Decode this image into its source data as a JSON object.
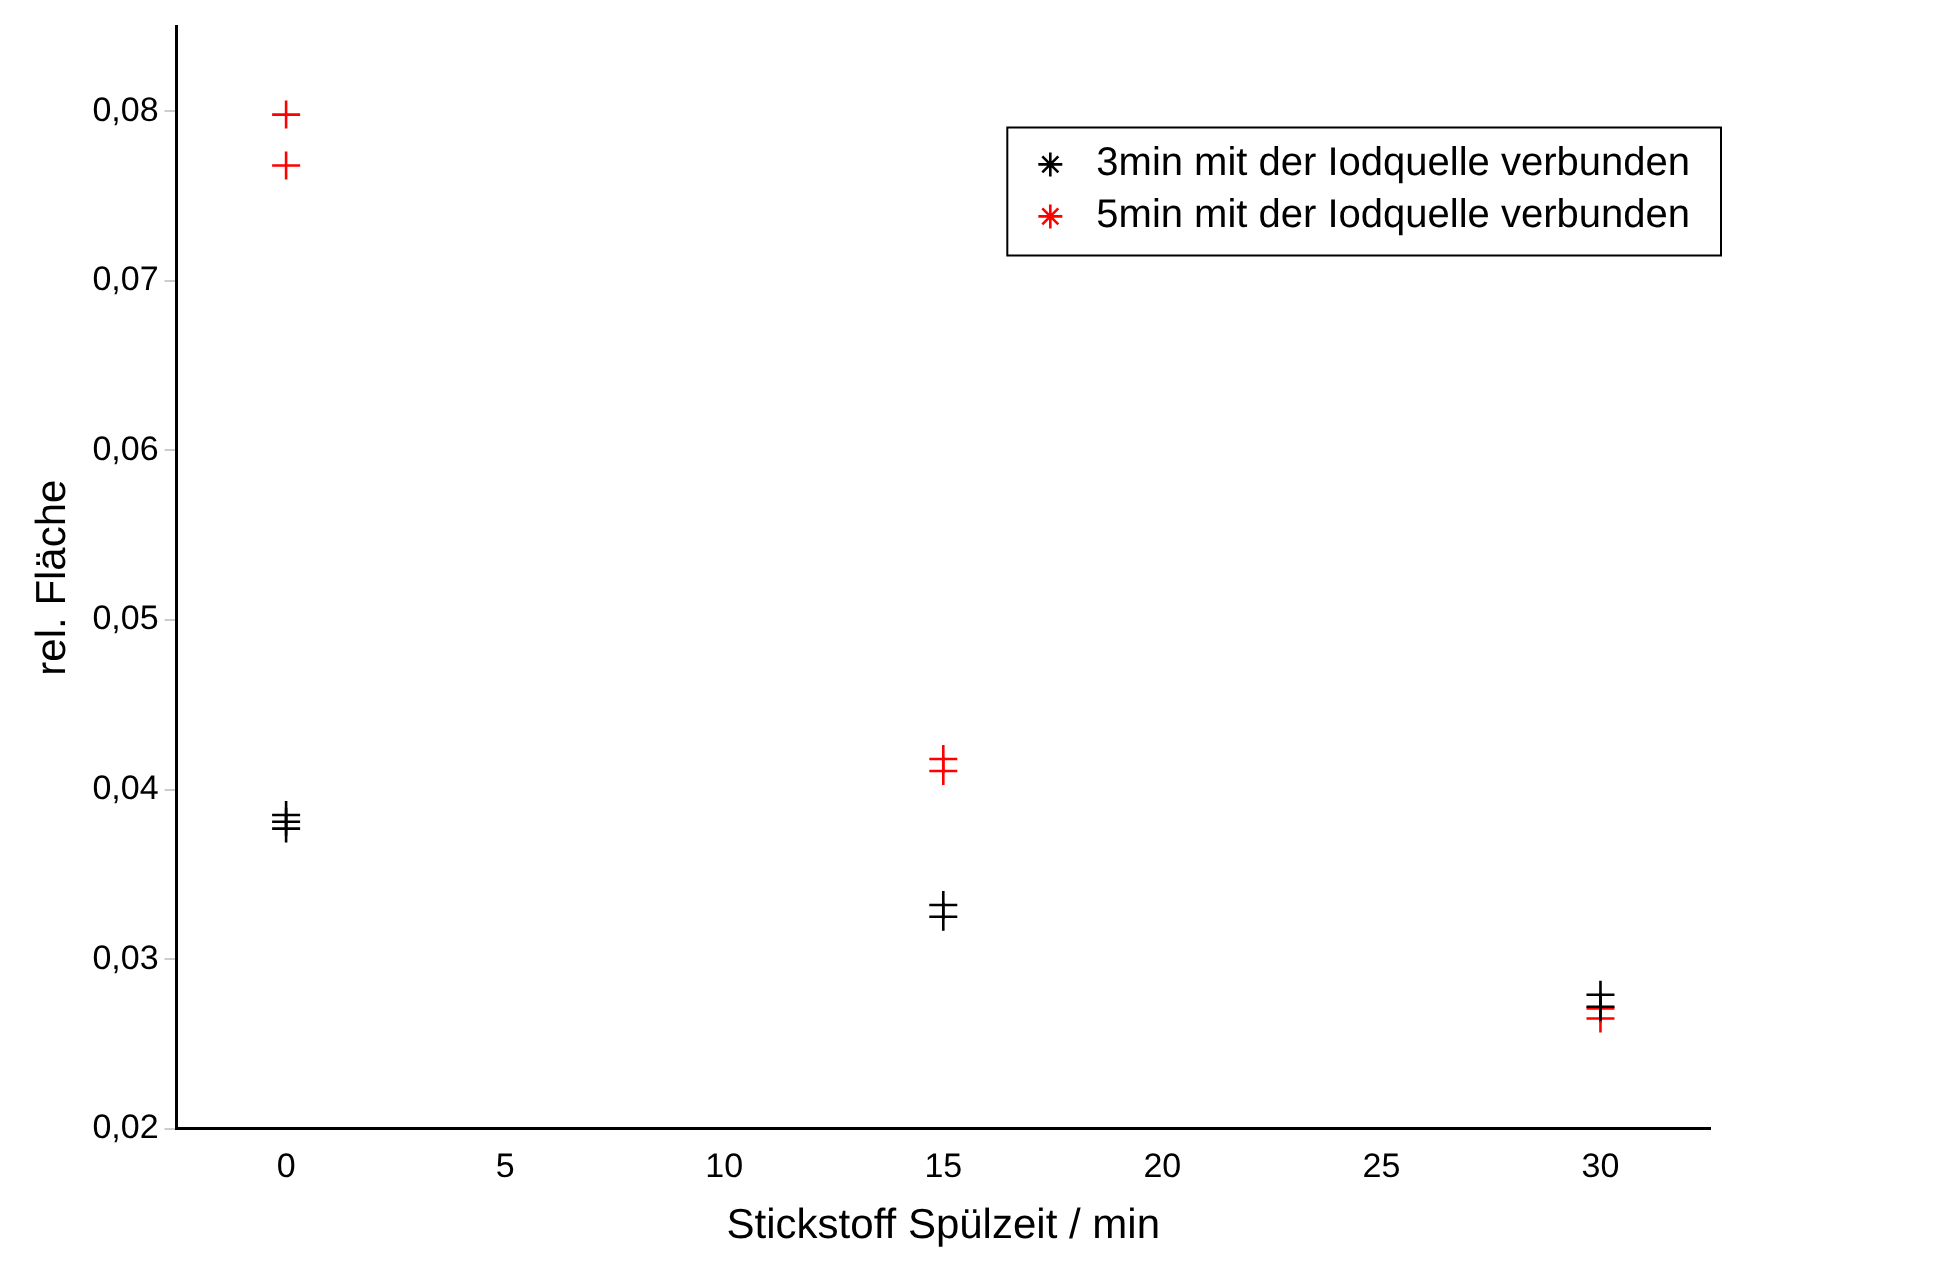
{
  "chart_data": {
    "type": "scatter",
    "xlabel": "Stickstoff Spülzeit / min",
    "ylabel": "rel. Fläche",
    "series": [
      {
        "name": "3min mit der Iodquelle verbunden",
        "color": "#000000",
        "x": [
          0,
          0,
          0,
          15,
          15,
          30,
          30
        ],
        "values": [
          0.0385,
          0.0381,
          0.0377,
          0.0332,
          0.0325,
          0.0279,
          0.0272
        ]
      },
      {
        "name": "5min mit der Iodquelle verbunden",
        "color": "#ff0000",
        "x": [
          0,
          0,
          15,
          15,
          30,
          30
        ],
        "values": [
          0.0798,
          0.0768,
          0.0418,
          0.0411,
          0.0271,
          0.0265
        ]
      }
    ],
    "xlim": [
      -2.5,
      32.5
    ],
    "xticks": [
      0,
      5,
      10,
      15,
      20,
      25,
      30
    ],
    "ylim": [
      0.02,
      0.085
    ],
    "yticks": [
      {
        "value": 0.02,
        "label": "0,02"
      },
      {
        "value": 0.03,
        "label": "0,03"
      },
      {
        "value": 0.04,
        "label": "0,04"
      },
      {
        "value": 0.05,
        "label": "0,05"
      },
      {
        "value": 0.06,
        "label": "0,06"
      },
      {
        "value": 0.07,
        "label": "0,07"
      },
      {
        "value": 0.08,
        "label": "0,08"
      }
    ],
    "grid": false,
    "legend": "top right",
    "marker": "cross"
  }
}
